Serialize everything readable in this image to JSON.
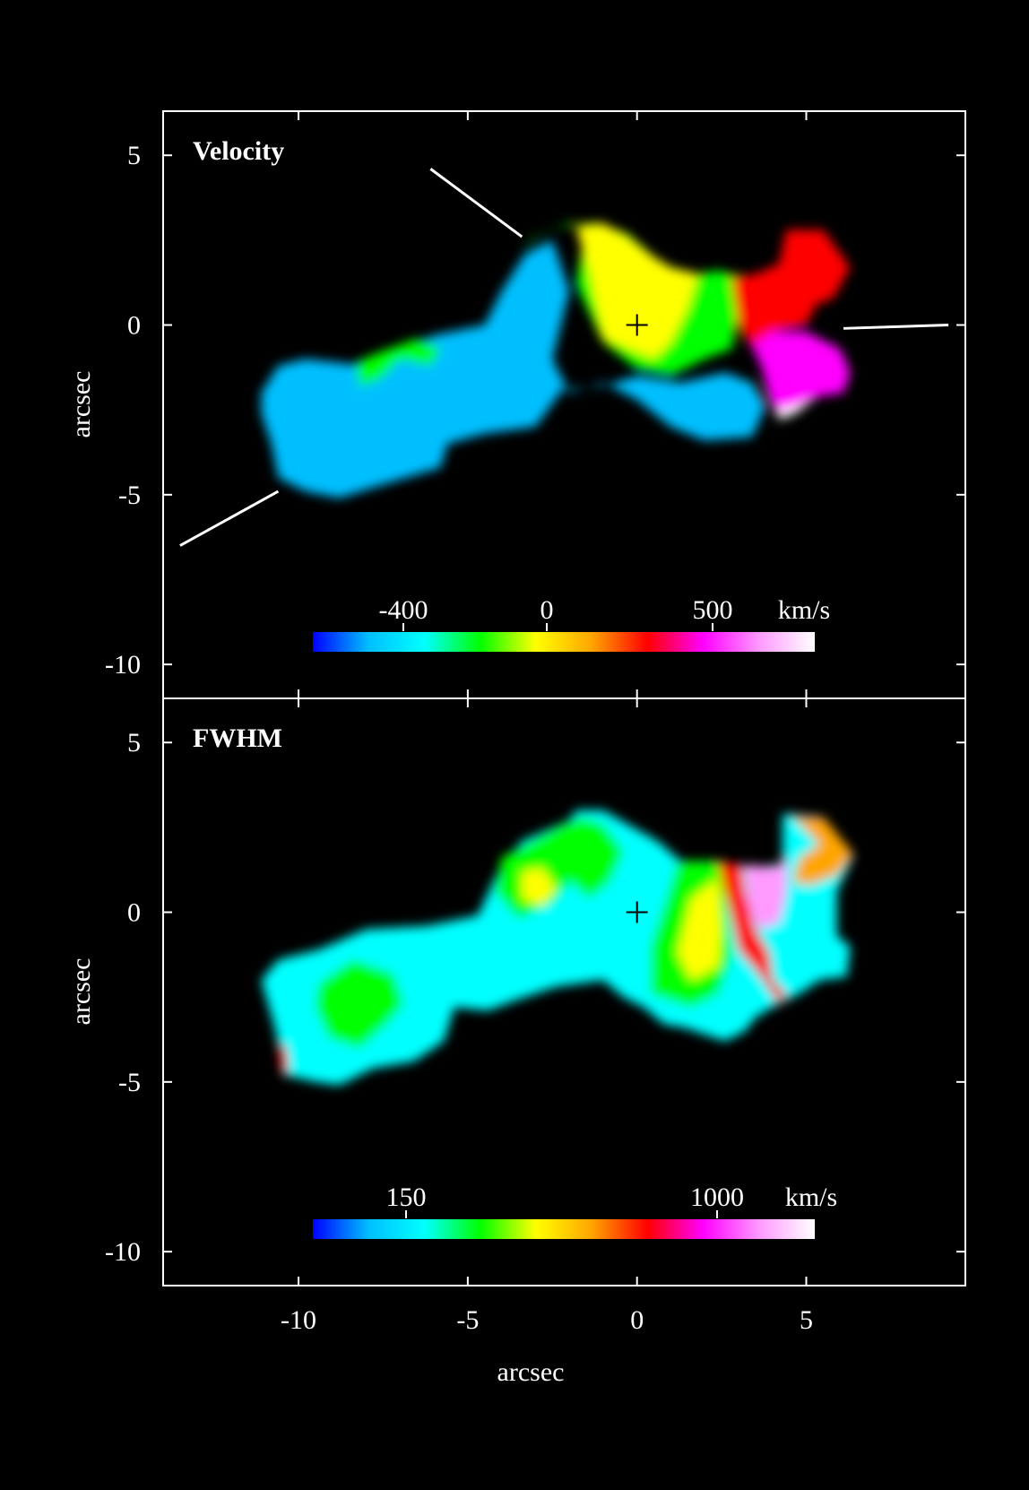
{
  "chart_data": [
    {
      "type": "heatmap",
      "title": "Velocity",
      "xlim": [
        -14,
        9.7
      ],
      "ylim": [
        -11,
        6.3
      ],
      "xticks": [
        -10,
        -5,
        0,
        5
      ],
      "yticks": [
        5,
        0,
        -5,
        -10
      ],
      "ytick_labels": [
        "5",
        "0",
        "-5",
        "-10"
      ],
      "ylabel": "arcsec",
      "center_marker": [
        0,
        0
      ],
      "colorbar": {
        "ticks": [
          "-400",
          "0",
          "500"
        ],
        "unit": "km/s",
        "colors": [
          "#0000ff",
          "#00bfff",
          "#00ffff",
          "#00ff00",
          "#ffff00",
          "#ffa500",
          "#ff0000",
          "#ff00ff",
          "#ff99ff",
          "#ffffff"
        ]
      },
      "slit_lines": [
        {
          "from": [
            -6.1,
            4.6
          ],
          "to": [
            -3.4,
            2.6
          ]
        },
        {
          "from": [
            -10.6,
            -4.9
          ],
          "to": [
            -13.5,
            -6.5
          ]
        },
        {
          "from": [
            6.1,
            -0.1
          ],
          "to": [
            9.2,
            0.0
          ]
        }
      ],
      "regions": [
        {
          "label": "blue-southwest",
          "velocity_kms": -450,
          "points": [
            [
              -11.1,
              -2
            ],
            [
              -10.6,
              -1.2
            ],
            [
              -9.8,
              -1
            ],
            [
              -8,
              -1.2
            ],
            [
              -6,
              -0.3
            ],
            [
              -4.5,
              0
            ],
            [
              -4,
              1
            ],
            [
              -3.3,
              2.1
            ],
            [
              -2.5,
              2.5
            ],
            [
              -2,
              1
            ],
            [
              -2.5,
              -1
            ],
            [
              -2,
              -2
            ],
            [
              -1,
              -1.7
            ],
            [
              0,
              -2.2
            ],
            [
              1,
              -3
            ],
            [
              2,
              -3.4
            ],
            [
              3.4,
              -3.3
            ],
            [
              3.8,
              -2.4
            ],
            [
              3.4,
              -1.7
            ],
            [
              2.6,
              -1.4
            ],
            [
              1.3,
              -1.7
            ],
            [
              0,
              -1.5
            ],
            [
              -1,
              -1.8
            ],
            [
              -2.2,
              -1.9
            ],
            [
              -3,
              -3
            ],
            [
              -4.5,
              -3.2
            ],
            [
              -5.6,
              -3.5
            ],
            [
              -5.8,
              -4.2
            ],
            [
              -7.5,
              -4.7
            ],
            [
              -8.8,
              -5.1
            ],
            [
              -9.8,
              -4.9
            ],
            [
              -10.6,
              -4.5
            ],
            [
              -10.8,
              -3.5
            ],
            [
              -11.1,
              -2.6
            ]
          ]
        },
        {
          "label": "green-band",
          "velocity_kms": -200,
          "points": [
            [
              -3.5,
              2.2
            ],
            [
              -2.6,
              2.8
            ],
            [
              -1.5,
              3
            ],
            [
              -1.8,
              1.2
            ],
            [
              -1,
              -0.5
            ],
            [
              0,
              -1.3
            ],
            [
              1,
              -1.5
            ],
            [
              2,
              -1
            ],
            [
              2.8,
              -0.7
            ],
            [
              3.2,
              1.4
            ],
            [
              2.4,
              1.6
            ],
            [
              1.8,
              1.5
            ],
            [
              1,
              1.7
            ],
            [
              0.5,
              2
            ],
            [
              -0.3,
              2.7
            ],
            [
              -1.2,
              3
            ],
            [
              -2,
              3
            ],
            [
              -3,
              2.6
            ]
          ]
        },
        {
          "label": "yellow-core",
          "velocity_kms": 50,
          "points": [
            [
              -1.8,
              2.9
            ],
            [
              -1,
              3
            ],
            [
              -0.3,
              2.6
            ],
            [
              0.5,
              2
            ],
            [
              1,
              1.7
            ],
            [
              1.8,
              1.5
            ],
            [
              1.5,
              0.5
            ],
            [
              1,
              -0.5
            ],
            [
              0.5,
              -1
            ],
            [
              0,
              -0.8
            ],
            [
              -1,
              -0.4
            ],
            [
              -1.2,
              0.5
            ],
            [
              -1.4,
              1.5
            ]
          ]
        },
        {
          "label": "red-northeast",
          "velocity_kms": 350,
          "points": [
            [
              2.8,
              1.4
            ],
            [
              3.5,
              1.5
            ],
            [
              4.2,
              1.8
            ],
            [
              4.4,
              2.8
            ],
            [
              5.5,
              2.8
            ],
            [
              6.3,
              1.7
            ],
            [
              5.8,
              0.8
            ],
            [
              5.3,
              0.6
            ],
            [
              5,
              0
            ],
            [
              4,
              -0.2
            ],
            [
              3.4,
              -0.7
            ],
            [
              3,
              0
            ]
          ]
        },
        {
          "label": "magenta-east",
          "velocity_kms": 600,
          "points": [
            [
              3.4,
              -0.6
            ],
            [
              4,
              -0.2
            ],
            [
              5,
              -0.2
            ],
            [
              6,
              -0.7
            ],
            [
              6.3,
              -1.4
            ],
            [
              6.1,
              -2
            ],
            [
              5.4,
              -2.1
            ],
            [
              4.6,
              -2.5
            ],
            [
              4.2,
              -2.8
            ],
            [
              3.9,
              -2.1
            ],
            [
              3.7,
              -1.3
            ]
          ]
        },
        {
          "label": "white-east",
          "velocity_kms": 900,
          "points": [
            [
              4.1,
              -2.5
            ],
            [
              4.6,
              -2.4
            ],
            [
              5.2,
              -2.2
            ],
            [
              4.7,
              -2.6
            ],
            [
              4.2,
              -2.8
            ]
          ]
        },
        {
          "label": "green-knot",
          "velocity_kms": -150,
          "points": [
            [
              -8.3,
              -1.1
            ],
            [
              -7.6,
              -0.8
            ],
            [
              -6.5,
              -0.4
            ],
            [
              -5.8,
              -0.7
            ],
            [
              -6.1,
              -1.2
            ],
            [
              -7,
              -1
            ],
            [
              -7.6,
              -1.6
            ],
            [
              -8.2,
              -1.8
            ]
          ]
        }
      ]
    },
    {
      "type": "heatmap",
      "title": "FWHM",
      "xlim": [
        -14,
        9.7
      ],
      "ylim": [
        -11,
        6.3
      ],
      "xticks": [
        -10,
        -5,
        0,
        5
      ],
      "xtick_labels": [
        "-10",
        "-5",
        "0",
        "5"
      ],
      "yticks": [
        5,
        0,
        -5,
        -10
      ],
      "ytick_labels": [
        "5",
        "0",
        "-5",
        "-10"
      ],
      "xlabel": "arcsec",
      "ylabel": "arcsec",
      "center_marker": [
        0,
        0
      ],
      "colorbar": {
        "ticks": [
          "150",
          "1000"
        ],
        "unit": "km/s",
        "colors": [
          "#0000ff",
          "#00bfff",
          "#00ffff",
          "#00ff00",
          "#ffff00",
          "#ffa500",
          "#ff0000",
          "#ff00ff",
          "#ff99ff",
          "#ffffff"
        ]
      },
      "regions": [
        {
          "label": "cyan-main",
          "fwhm_kms": 200,
          "points": [
            [
              -11.1,
              -2
            ],
            [
              -10.6,
              -1.4
            ],
            [
              -9.4,
              -1.1
            ],
            [
              -8,
              -0.5
            ],
            [
              -6.2,
              -0.4
            ],
            [
              -4.7,
              -0.1
            ],
            [
              -4.2,
              1
            ],
            [
              -3.4,
              2.1
            ],
            [
              -2,
              2.7
            ],
            [
              -1.8,
              3
            ],
            [
              -1,
              3
            ],
            [
              0.6,
              2.1
            ],
            [
              1.3,
              1.5
            ],
            [
              2.5,
              1.5
            ],
            [
              3.2,
              1.3
            ],
            [
              4.3,
              1.4
            ],
            [
              4.3,
              2.9
            ],
            [
              5.5,
              2.8
            ],
            [
              6.4,
              1.7
            ],
            [
              5.9,
              0.6
            ],
            [
              5.9,
              -0.7
            ],
            [
              6.3,
              -1
            ],
            [
              6.2,
              -1.9
            ],
            [
              5.4,
              -2
            ],
            [
              4.8,
              -2.4
            ],
            [
              4,
              -2.8
            ],
            [
              3.5,
              -3.1
            ],
            [
              3.2,
              -3.5
            ],
            [
              2.6,
              -3.8
            ],
            [
              1.4,
              -3.4
            ],
            [
              0.8,
              -3.3
            ],
            [
              0.2,
              -2.8
            ],
            [
              -0.4,
              -2.5
            ],
            [
              -1,
              -2
            ],
            [
              -2.4,
              -2.2
            ],
            [
              -3.6,
              -2.6
            ],
            [
              -4.4,
              -2.9
            ],
            [
              -5.4,
              -2.8
            ],
            [
              -5.7,
              -3.8
            ],
            [
              -6.6,
              -4.4
            ],
            [
              -7.8,
              -4.6
            ],
            [
              -8.8,
              -5.1
            ],
            [
              -9.5,
              -5
            ],
            [
              -10.4,
              -4.8
            ],
            [
              -10.7,
              -3.4
            ]
          ]
        },
        {
          "label": "green-southwest",
          "fwhm_kms": 350,
          "points": [
            [
              -9.4,
              -2.1
            ],
            [
              -8.4,
              -1.4
            ],
            [
              -7.2,
              -1.8
            ],
            [
              -6.9,
              -2.7
            ],
            [
              -7.4,
              -3.3
            ],
            [
              -8.2,
              -4
            ],
            [
              -9.1,
              -3.7
            ],
            [
              -9.5,
              -2.8
            ]
          ]
        },
        {
          "label": "yellow-north",
          "fwhm_kms": 450,
          "points": [
            [
              -4,
              1.6
            ],
            [
              -3.1,
              2.1
            ],
            [
              -2.2,
              2.6
            ],
            [
              -1.6,
              2.8
            ],
            [
              -1.5,
              1.8
            ],
            [
              -1.9,
              1
            ],
            [
              -2.5,
              0.3
            ],
            [
              -3.5,
              -0.2
            ],
            [
              -4.2,
              0.6
            ]
          ]
        },
        {
          "label": "orange-knot",
          "fwhm_kms": 550,
          "points": [
            [
              -3.4,
              1.2
            ],
            [
              -2.8,
              1.3
            ],
            [
              -2.4,
              0.7
            ],
            [
              -2.8,
              0.2
            ],
            [
              -3.4,
              0.4
            ]
          ]
        },
        {
          "label": "green-north",
          "fwhm_kms": 380,
          "points": [
            [
              -1.6,
              2.8
            ],
            [
              -1,
              2.6
            ],
            [
              -0.4,
              1.8
            ],
            [
              -0.8,
              0.9
            ],
            [
              -1.4,
              0.4
            ],
            [
              -2.1,
              1
            ],
            [
              -1.9,
              2
            ]
          ]
        },
        {
          "label": "green-east",
          "fwhm_kms": 380,
          "points": [
            [
              1.2,
              1.5
            ],
            [
              2.4,
              1.5
            ],
            [
              2.6,
              0.6
            ],
            [
              2.8,
              -1.3
            ],
            [
              2.4,
              -2.4
            ],
            [
              1.6,
              -2.8
            ],
            [
              0.4,
              -2.4
            ],
            [
              0.4,
              -1
            ],
            [
              0.8,
              0.2
            ]
          ]
        },
        {
          "label": "orange-east",
          "fwhm_kms": 550,
          "points": [
            [
              1.6,
              0.4
            ],
            [
              2.4,
              1
            ],
            [
              2.5,
              -0.5
            ],
            [
              2.4,
              -1.6
            ],
            [
              1.6,
              -2
            ],
            [
              1.2,
              -1.2
            ]
          ]
        },
        {
          "label": "red-streak",
          "fwhm_kms": 800,
          "points": [
            [
              2.4,
              1.5
            ],
            [
              3.1,
              1.4
            ],
            [
              3.2,
              0.6
            ],
            [
              3.5,
              -0.5
            ],
            [
              3.9,
              -1.2
            ],
            [
              4,
              -2
            ],
            [
              4.4,
              -2.4
            ],
            [
              4.2,
              -2.7
            ],
            [
              3.6,
              -1.8
            ],
            [
              3,
              -1.1
            ],
            [
              2.8,
              -0.2
            ],
            [
              2.6,
              0.6
            ]
          ]
        },
        {
          "label": "white-east",
          "fwhm_kms": 1100,
          "points": [
            [
              3.2,
              1.4
            ],
            [
              4.1,
              1.3
            ],
            [
              4.4,
              1.6
            ],
            [
              4.4,
              0.6
            ],
            [
              4.2,
              -0.3
            ],
            [
              3.6,
              -0.5
            ],
            [
              3.3,
              0.2
            ]
          ]
        },
        {
          "label": "orange-northeast",
          "fwhm_kms": 600,
          "points": [
            [
              4.6,
              2.8
            ],
            [
              5.5,
              2.8
            ],
            [
              6.4,
              1.7
            ],
            [
              5.9,
              1.1
            ],
            [
              5.1,
              0.8
            ],
            [
              4.6,
              0.9
            ],
            [
              4.8,
              1.6
            ],
            [
              5.4,
              2
            ]
          ]
        },
        {
          "label": "red-southwest-edge",
          "fwhm_kms": 800,
          "points": [
            [
              -10.6,
              -4
            ],
            [
              -10.4,
              -3.9
            ],
            [
              -10.3,
              -4.6
            ],
            [
              -10.5,
              -4.8
            ]
          ]
        }
      ]
    }
  ]
}
